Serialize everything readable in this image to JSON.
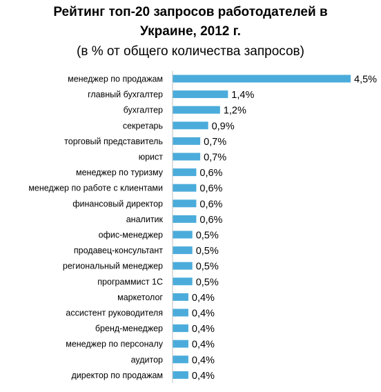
{
  "title_line1": "Рейтинг топ-20 запросов работодателей в",
  "title_line2": "Украине, 2012 г.",
  "subtitle": "(в % от общего количества запросов)",
  "bar_color": "#4BACDB",
  "chart_data": {
    "type": "bar",
    "orientation": "horizontal",
    "title": "Рейтинг топ-20 запросов работодателей в Украине, 2012 г.",
    "subtitle": "(в % от общего количества запросов)",
    "unit": "%",
    "decimal_separator": ",",
    "categories": [
      "менеджер по продажам",
      "главный бухгалтер",
      "бухгалтер",
      "секретарь",
      "торговый представитель",
      "юрист",
      "менеджер по туризму",
      "менеджер по работе с клиентами",
      "финансовый директор",
      "аналитик",
      "офис-менеджер",
      "продавец-консультант",
      "региональный менеджер",
      "программист 1С",
      "маркетолог",
      "ассистент руководителя",
      "бренд-менеджер",
      "менеджер по персоналу",
      "аудитор",
      "директор по продажам"
    ],
    "values": [
      4.5,
      1.4,
      1.2,
      0.9,
      0.7,
      0.7,
      0.6,
      0.6,
      0.6,
      0.6,
      0.5,
      0.5,
      0.5,
      0.5,
      0.4,
      0.4,
      0.4,
      0.4,
      0.4,
      0.4
    ],
    "value_labels": [
      "4,5%",
      "1,4%",
      "1,2%",
      "0,9%",
      "0,7%",
      "0,7%",
      "0,6%",
      "0,6%",
      "0,6%",
      "0,6%",
      "0,5%",
      "0,5%",
      "0,5%",
      "0,5%",
      "0,4%",
      "0,4%",
      "0,4%",
      "0,4%",
      "0,4%",
      "0,4%"
    ],
    "xlim": [
      0,
      4.5
    ],
    "grid": false,
    "legend": "none"
  }
}
